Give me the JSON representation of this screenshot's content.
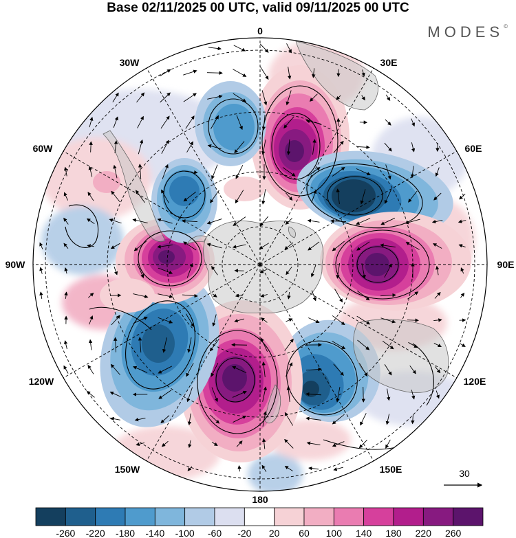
{
  "title": "Base 02/11/2025 00 UTC, valid 09/11/2025 00 UTC",
  "brand": "MODES",
  "brand_mark": "©",
  "map": {
    "projection": "south polar stereographic",
    "longitude_labels": {
      "top": "0",
      "e30": "30E",
      "e60": "60E",
      "e90": "90E",
      "e120": "120E",
      "e150": "150E",
      "bottom": "180",
      "w150": "150W",
      "w120": "120W",
      "w90": "90W",
      "w60": "60W",
      "w30": "30W"
    },
    "vector_reference": {
      "label": "30"
    }
  },
  "colorbar": {
    "ticks": [
      "-260",
      "-220",
      "-180",
      "-140",
      "-100",
      "-60",
      "-20",
      "20",
      "60",
      "100",
      "140",
      "180",
      "220",
      "260"
    ],
    "colors": [
      "#143f5e",
      "#1f5f8d",
      "#2e7bb4",
      "#4f9bcd",
      "#7fb6dc",
      "#b1cbe6",
      "#dcdff0",
      "#ffffff",
      "#f6d2d6",
      "#f2aec3",
      "#ea7cb1",
      "#d6409c",
      "#b21e8c",
      "#871a80",
      "#5c146c"
    ]
  },
  "anomaly_centers": [
    {
      "name": "pos-30e",
      "value": 260
    },
    {
      "name": "neg-60e",
      "value": -260
    },
    {
      "name": "pos-90e",
      "value": 260
    },
    {
      "name": "neg-130e",
      "value": -220
    },
    {
      "name": "pos-180",
      "value": 260
    },
    {
      "name": "neg-125w",
      "value": -180
    },
    {
      "name": "pos-90w",
      "value": 260
    },
    {
      "name": "neg-60w",
      "value": -180
    },
    {
      "name": "neg-15w",
      "value": -140
    }
  ]
}
